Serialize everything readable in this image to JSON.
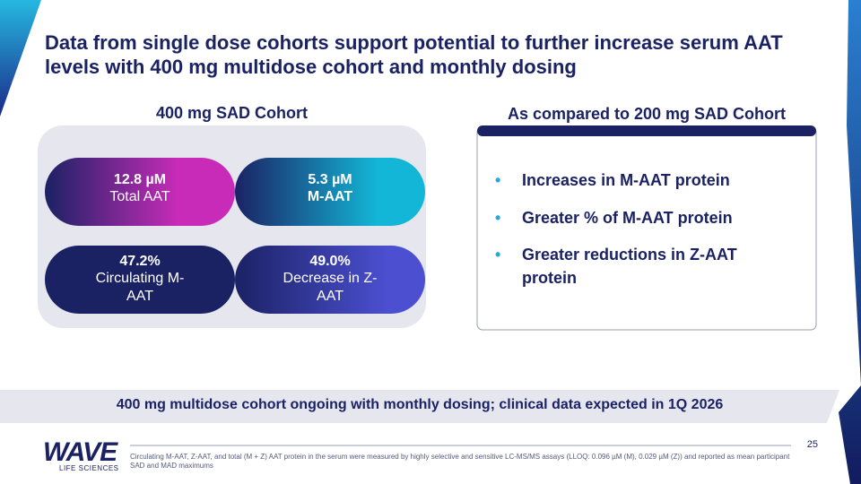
{
  "header": {
    "title": "Data from single dose cohorts support potential to further increase serum AAT levels with 400 mg multidose cohort and monthly dosing"
  },
  "left_panel": {
    "heading": "400 mg SAD Cohort",
    "tiles": [
      {
        "value": "12.8 µM",
        "label": "Total AAT"
      },
      {
        "value": "5.3 µM",
        "label": "M-AAT"
      },
      {
        "value": "47.2%",
        "label": "Circulating M-AAT"
      },
      {
        "value": "49.0%",
        "label": "Decrease in Z-AAT"
      }
    ]
  },
  "right_panel": {
    "heading": "As compared to 200 mg SAD Cohort",
    "bullets": [
      "Increases in M-AAT protein",
      "Greater % of M-AAT protein",
      "Greater reductions in Z-AAT protein"
    ]
  },
  "banner": "400 mg multidose cohort ongoing with monthly dosing; clinical data expected in 1Q 2026",
  "logo": {
    "name": "WAVE",
    "sub": "LIFE SCIENCES"
  },
  "footer": {
    "page_number": "25",
    "footnote": "Circulating M-AAT, Z-AAT, and total (M + Z) AAT protein in the serum were measured by highly selective and sensitive LC-MS/MS assays (LLOQ: 0.096 µM (M), 0.029 µM (Z)) and reported as mean participant SAD and MAD maximums"
  }
}
